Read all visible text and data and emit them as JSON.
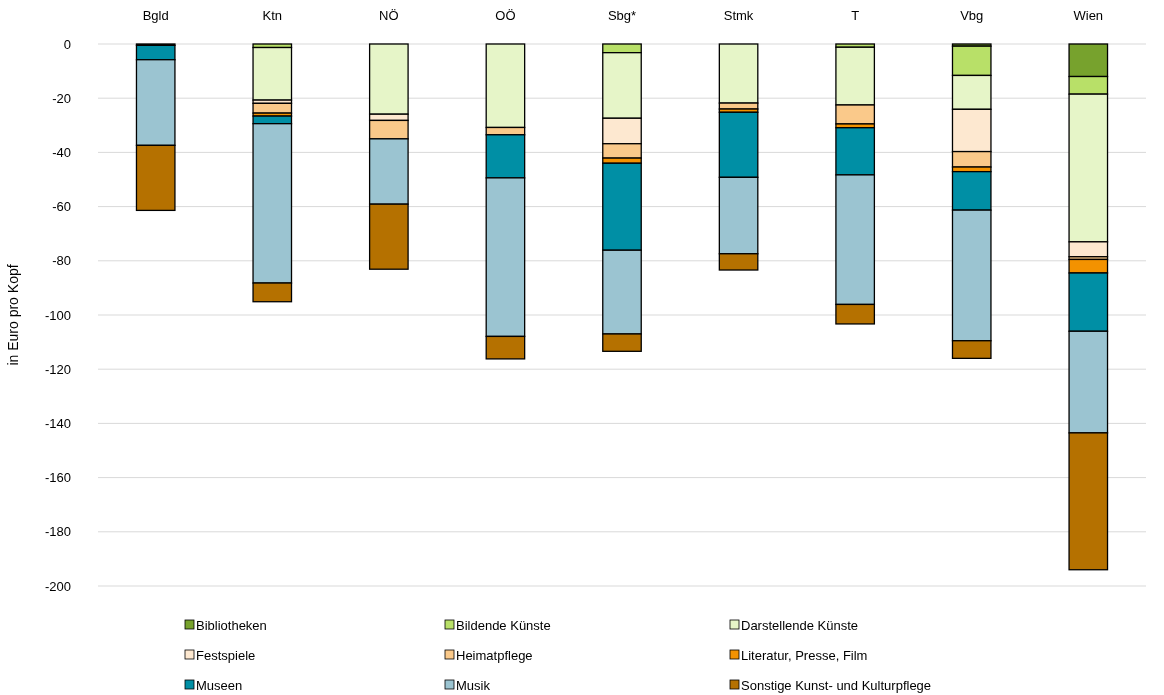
{
  "chart_data": {
    "type": "bar",
    "stacked": true,
    "ylabel": "in Euro pro Kopf",
    "categories": [
      "Bgld",
      "Ktn",
      "NÖ",
      "OÖ",
      "Sbg*",
      "Stmk",
      "T",
      "Vbg",
      "Wien"
    ],
    "ylim": [
      -200,
      0
    ],
    "yticks": [
      0,
      -20,
      -40,
      -60,
      -80,
      -100,
      -120,
      -140,
      -160,
      -180,
      -200
    ],
    "grid": "y",
    "legend": "bottom",
    "series": [
      {
        "name": "Bibliotheken",
        "color": "#77a22d",
        "values": [
          -0.5,
          null,
          null,
          null,
          null,
          null,
          null,
          -0.8,
          -12
        ]
      },
      {
        "name": "Bildende Künste",
        "color": "#b8e068",
        "values": [
          null,
          -1.3,
          null,
          null,
          -3.2,
          null,
          -1.2,
          -10.8,
          -6.5
        ]
      },
      {
        "name": "Darstellende Künste",
        "color": "#e6f5c8",
        "values": [
          null,
          -19.4,
          -25.9,
          -30.8,
          -24.2,
          -21.8,
          -21.3,
          -12.5,
          -54.5
        ]
      },
      {
        "name": "Festspiele",
        "color": "#fde8d0",
        "values": [
          null,
          -1.2,
          -2.3,
          null,
          -9.4,
          null,
          null,
          -15.6,
          -5.5
        ]
      },
      {
        "name": "Heimatpflege",
        "color": "#fac98a",
        "values": [
          null,
          -3.6,
          -6.8,
          -2.7,
          -5.3,
          -2.2,
          -7.0,
          -5.7,
          -1
        ]
      },
      {
        "name": "Literatur, Presse, Film",
        "color": "#f39200",
        "values": [
          null,
          -1.1,
          null,
          null,
          -1.9,
          -1.2,
          -1.4,
          -1.7,
          -5
        ]
      },
      {
        "name": "Museen",
        "color": "#008fa5",
        "values": [
          -5.3,
          -2.8,
          null,
          -15.9,
          -32.1,
          -24.0,
          -17.4,
          -14.2,
          -21.5
        ]
      },
      {
        "name": "Musik",
        "color": "#9bc4d1",
        "values": [
          -31.6,
          -58.8,
          -24.1,
          -58.5,
          -30.9,
          -28.2,
          -47.8,
          -48.2,
          -37.5
        ]
      },
      {
        "name": "Sonstige Kunst- und Kulturpflege",
        "color": "#b57100",
        "values": [
          -24.0,
          -6.9,
          -24.0,
          -8.3,
          -6.4,
          -6.0,
          -7.2,
          -6.5,
          -50.5
        ]
      }
    ]
  }
}
